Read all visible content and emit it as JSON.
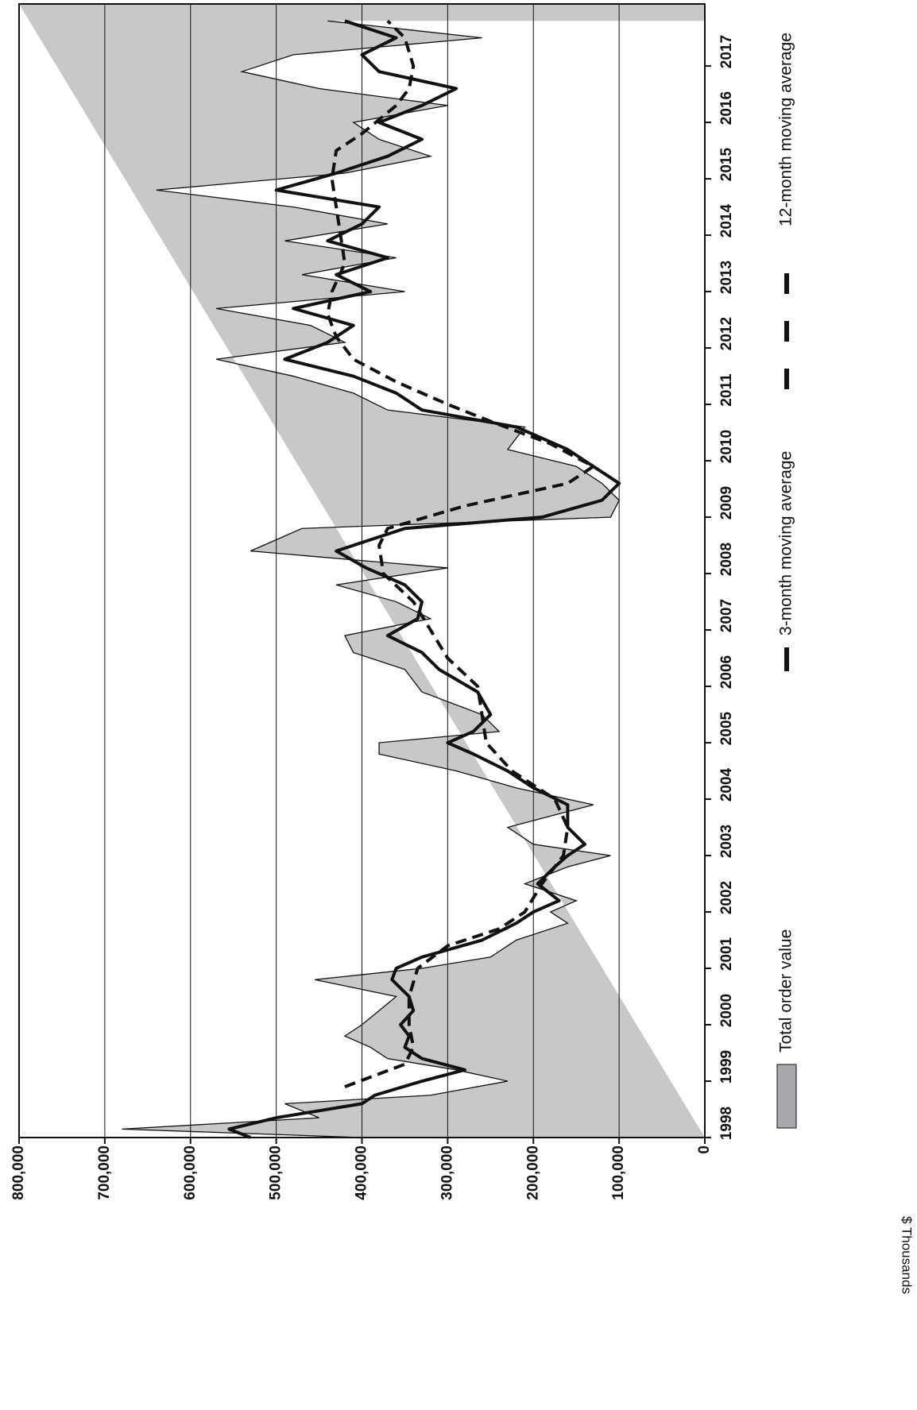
{
  "chart_data": {
    "type": "line",
    "y_axis_label": "$ Thousands",
    "xlim": [
      1998,
      2018.1
    ],
    "xticks": [
      1998,
      1999,
      2000,
      2001,
      2002,
      2003,
      2004,
      2005,
      2006,
      2007,
      2008,
      2009,
      2010,
      2011,
      2012,
      2013,
      2014,
      2015,
      2016,
      2017
    ],
    "ylim": [
      0,
      800000
    ],
    "yticks": [
      0,
      {
        "value": 100000,
        "label": "100,000"
      },
      {
        "value": 200000,
        "label": "200,000"
      },
      {
        "value": 300000,
        "label": "300,000"
      },
      {
        "value": 400000,
        "label": "400,000"
      },
      {
        "value": 500000,
        "label": "500,000"
      },
      {
        "value": 600000,
        "label": "600,000"
      },
      {
        "value": 700000,
        "label": "700,000"
      },
      {
        "value": 800000,
        "label": "800,000"
      }
    ],
    "grid": true,
    "legend": "bottom",
    "series": [
      {
        "name": "Total order value",
        "style": "area",
        "color": "#c8c8c8",
        "legend_color": "#a7a9ac",
        "x": [
          1998.0,
          1998.15,
          1998.35,
          1998.6,
          1998.75,
          1999.0,
          1999.2,
          1999.4,
          1999.6,
          1999.8,
          2000.0,
          2000.25,
          2000.5,
          2000.8,
          2001.0,
          2001.2,
          2001.5,
          2001.8,
          2002.0,
          2002.2,
          2002.5,
          2002.8,
          2003.0,
          2003.2,
          2003.5,
          2003.9,
          2004.2,
          2004.5,
          2004.8,
          2005.0,
          2005.2,
          2005.5,
          2005.9,
          2006.3,
          2006.6,
          2006.9,
          2007.2,
          2007.5,
          2007.8,
          2008.1,
          2008.4,
          2008.8,
          2009.0,
          2009.3,
          2009.6,
          2009.9,
          2010.2,
          2010.6,
          2010.9,
          2011.2,
          2011.5,
          2011.8,
          2012.1,
          2012.4,
          2012.7,
          2013.0,
          2013.3,
          2013.6,
          2013.9,
          2014.2,
          2014.5,
          2014.8,
          2015.1,
          2015.4,
          2015.7,
          2016.0,
          2016.3,
          2016.6,
          2016.9,
          2017.2,
          2017.5,
          2017.8
        ],
        "values": [
          400000,
          680000,
          450000,
          490000,
          320000,
          230000,
          290000,
          370000,
          390000,
          420000,
          400000,
          380000,
          360000,
          455000,
          330000,
          250000,
          220000,
          160000,
          180000,
          150000,
          210000,
          160000,
          110000,
          200000,
          230000,
          130000,
          220000,
          290000,
          380000,
          380000,
          240000,
          260000,
          330000,
          350000,
          410000,
          420000,
          320000,
          360000,
          430000,
          300000,
          530000,
          470000,
          110000,
          100000,
          120000,
          150000,
          230000,
          210000,
          370000,
          410000,
          480000,
          570000,
          420000,
          460000,
          570000,
          350000,
          470000,
          360000,
          490000,
          370000,
          480000,
          640000,
          420000,
          320000,
          380000,
          410000,
          300000,
          450000,
          540000,
          480000,
          260000,
          440000
        ]
      },
      {
        "name": "3-month moving average",
        "style": "solid",
        "color": "#111111",
        "x": [
          1998.0,
          1998.15,
          1998.35,
          1998.6,
          1998.75,
          1999.0,
          1999.2,
          1999.4,
          1999.6,
          1999.8,
          2000.0,
          2000.25,
          2000.5,
          2000.8,
          2001.0,
          2001.2,
          2001.5,
          2001.8,
          2002.0,
          2002.2,
          2002.5,
          2002.8,
          2003.0,
          2003.2,
          2003.5,
          2003.9,
          2004.2,
          2004.5,
          2004.8,
          2005.0,
          2005.2,
          2005.5,
          2005.9,
          2006.3,
          2006.6,
          2006.9,
          2007.2,
          2007.5,
          2007.8,
          2008.1,
          2008.4,
          2008.8,
          2009.0,
          2009.3,
          2009.6,
          2009.9,
          2010.2,
          2010.6,
          2010.9,
          2011.2,
          2011.5,
          2011.8,
          2012.1,
          2012.4,
          2012.7,
          2013.0,
          2013.3,
          2013.6,
          2013.9,
          2014.2,
          2014.5,
          2014.8,
          2015.1,
          2015.4,
          2015.7,
          2016.0,
          2016.3,
          2016.6,
          2016.9,
          2017.2,
          2017.5,
          2017.8
        ],
        "values": [
          530000,
          555000,
          500000,
          400000,
          385000,
          330000,
          280000,
          330000,
          350000,
          345000,
          355000,
          340000,
          345000,
          365000,
          360000,
          330000,
          260000,
          220000,
          200000,
          170000,
          195000,
          175000,
          160000,
          140000,
          160000,
          160000,
          200000,
          230000,
          270000,
          300000,
          270000,
          250000,
          265000,
          310000,
          330000,
          370000,
          335000,
          330000,
          350000,
          395000,
          430000,
          350000,
          190000,
          120000,
          100000,
          130000,
          160000,
          220000,
          330000,
          360000,
          410000,
          490000,
          440000,
          410000,
          480000,
          390000,
          430000,
          370000,
          440000,
          400000,
          380000,
          500000,
          430000,
          370000,
          330000,
          380000,
          330000,
          290000,
          380000,
          400000,
          360000,
          420000
        ]
      },
      {
        "name": "12-month moving average",
        "style": "dashed",
        "color": "#111111",
        "x": [
          1998.9,
          1999.3,
          1999.6,
          2000.0,
          2000.5,
          2001.0,
          2001.4,
          2001.7,
          2002.0,
          2002.5,
          2003.0,
          2003.5,
          2004.0,
          2004.5,
          2005.0,
          2005.5,
          2006.0,
          2006.5,
          2007.0,
          2007.5,
          2008.0,
          2008.5,
          2008.8,
          2009.2,
          2009.6,
          2009.9,
          2010.3,
          2010.7,
          2011.0,
          2011.4,
          2011.8,
          2012.2,
          2012.6,
          2013.0,
          2013.5,
          2014.0,
          2014.5,
          2015.0,
          2015.5,
          2015.8,
          2016.3,
          2016.6,
          2017.0,
          2017.5,
          2017.8
        ],
        "values": [
          420000,
          350000,
          340000,
          345000,
          345000,
          335000,
          300000,
          240000,
          210000,
          190000,
          165000,
          160000,
          175000,
          225000,
          255000,
          260000,
          265000,
          300000,
          320000,
          340000,
          375000,
          380000,
          370000,
          280000,
          160000,
          130000,
          180000,
          250000,
          300000,
          360000,
          410000,
          430000,
          440000,
          435000,
          420000,
          425000,
          430000,
          435000,
          430000,
          400000,
          360000,
          345000,
          340000,
          350000,
          370000
        ]
      }
    ]
  }
}
